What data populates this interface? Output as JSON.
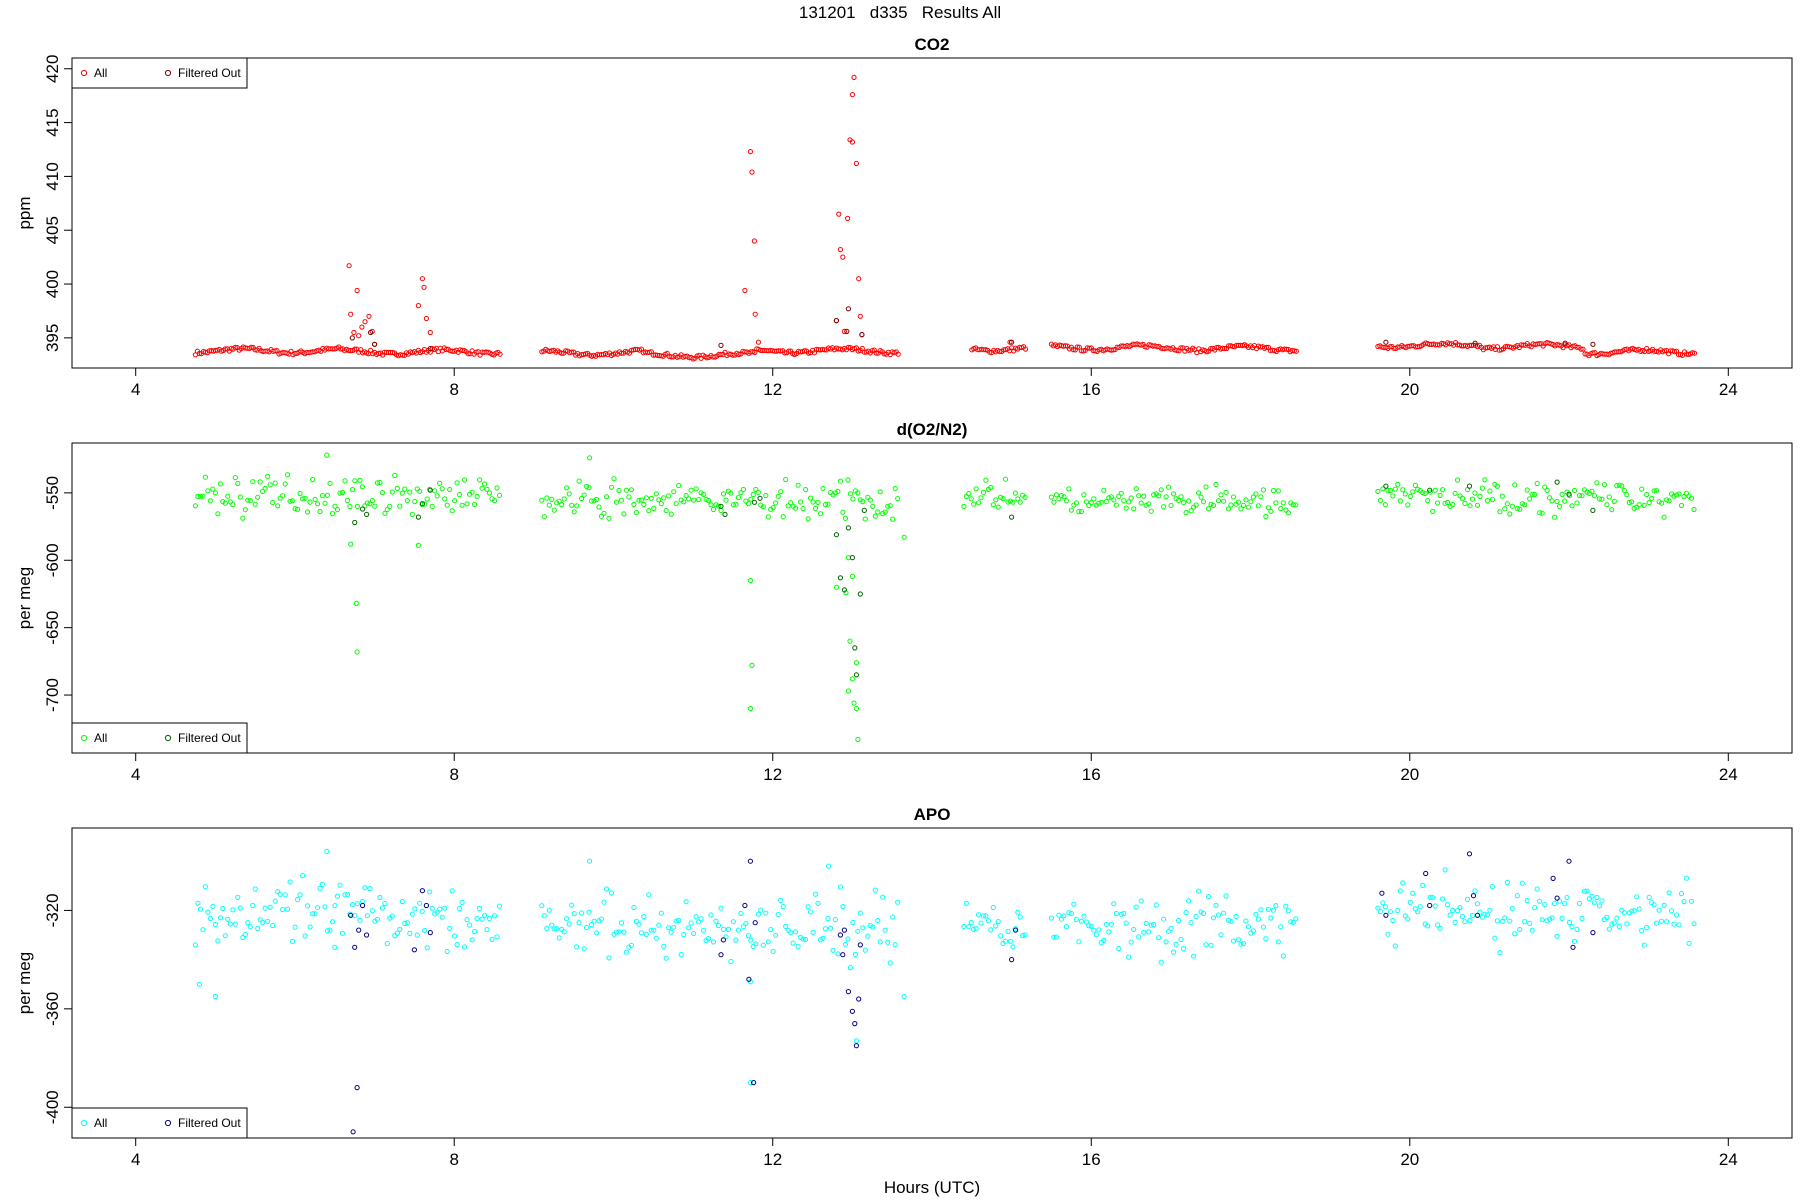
{
  "page": {
    "title": "131201   d335   Results All"
  },
  "colors": {
    "co2_all": "#ff0000",
    "co2_filtered": "#7a0000",
    "o2_all": "#00ff00",
    "o2_filtered": "#006400",
    "apo_all": "#00ffff",
    "apo_filtered": "#000080"
  },
  "chart_data": [
    {
      "type": "scatter",
      "title": "CO2",
      "xlabel": "",
      "ylabel": "ppm",
      "xlim": [
        3.2,
        24.8
      ],
      "ylim": [
        392.2,
        421
      ],
      "x_ticks": [
        "4",
        "8",
        "12",
        "16",
        "20",
        "24"
      ],
      "y_ticks": [
        "395",
        "400",
        "405",
        "410",
        "415",
        "420"
      ],
      "grid": false,
      "legend_position": "top-left",
      "legend": [
        "All",
        "Filtered Out"
      ],
      "series": [
        {
          "name": "All",
          "segments": [
            [
              4.75,
              6.6,
              393.8
            ],
            [
              6.6,
              8.6,
              393.7
            ],
            [
              9.1,
              10.4,
              393.6
            ],
            [
              10.4,
              11.8,
              393.4
            ],
            [
              11.8,
              13.6,
              393.8
            ],
            [
              14.5,
              15.2,
              394.0
            ],
            [
              15.5,
              17.3,
              394.1
            ],
            [
              17.3,
              18.6,
              394.0
            ],
            [
              19.6,
              20.9,
              394.3
            ],
            [
              20.9,
              22.2,
              394.2
            ],
            [
              22.2,
              23.6,
              393.7
            ]
          ],
          "points": [
            [
              6.68,
              401.7
            ],
            [
              6.7,
              397.2
            ],
            [
              6.74,
              395.5
            ],
            [
              6.78,
              399.4
            ],
            [
              6.8,
              395.2
            ],
            [
              6.84,
              396.0
            ],
            [
              6.88,
              396.5
            ],
            [
              6.93,
              397.0
            ],
            [
              6.97,
              395.6
            ],
            [
              7.0,
              394.4
            ],
            [
              7.55,
              398.0
            ],
            [
              7.6,
              400.5
            ],
            [
              7.62,
              399.7
            ],
            [
              7.65,
              396.8
            ],
            [
              7.7,
              395.5
            ],
            [
              11.65,
              399.4
            ],
            [
              11.72,
              412.3
            ],
            [
              11.74,
              410.4
            ],
            [
              11.77,
              404.0
            ],
            [
              11.78,
              397.2
            ],
            [
              11.82,
              394.6
            ],
            [
              12.8,
              396.6
            ],
            [
              12.83,
              406.5
            ],
            [
              12.85,
              403.2
            ],
            [
              12.88,
              402.5
            ],
            [
              12.9,
              395.6
            ],
            [
              12.94,
              406.1
            ],
            [
              12.97,
              413.4
            ],
            [
              13.0,
              417.6
            ],
            [
              13.02,
              419.2
            ],
            [
              13.0,
              413.2
            ],
            [
              13.05,
              411.2
            ],
            [
              13.08,
              400.5
            ],
            [
              13.1,
              397.0
            ],
            [
              13.12,
              395.3
            ],
            [
              14.98,
              394.6
            ]
          ]
        },
        {
          "name": "Filtered Out",
          "points": [
            [
              6.72,
              395.0
            ],
            [
              6.95,
              395.5
            ],
            [
              7.0,
              394.4
            ],
            [
              7.7,
              394.0
            ],
            [
              11.35,
              394.3
            ],
            [
              12.8,
              396.6
            ],
            [
              12.93,
              395.6
            ],
            [
              12.95,
              397.7
            ],
            [
              13.12,
              395.3
            ],
            [
              15.0,
              394.6
            ],
            [
              19.7,
              394.6
            ],
            [
              20.82,
              394.5
            ],
            [
              21.95,
              394.5
            ],
            [
              22.3,
              394.4
            ]
          ]
        }
      ]
    },
    {
      "type": "scatter",
      "title": "d(O2/N2)",
      "xlabel": "",
      "ylabel": "per meg",
      "xlim": [
        3.2,
        24.8
      ],
      "ylim": [
        -743,
        -513
      ],
      "x_ticks": [
        "4",
        "8",
        "12",
        "16",
        "20",
        "24"
      ],
      "y_ticks": [
        "-550",
        "-600",
        "-650",
        "-700"
      ],
      "grid": false,
      "legend_position": "bottom-left",
      "legend": [
        "All",
        "Filtered Out"
      ],
      "series": [
        {
          "name": "All",
          "segments": [
            [
              4.75,
              8.6,
              -552,
              10
            ],
            [
              9.1,
              13.6,
              -556,
              10
            ],
            [
              14.4,
              15.2,
              -552,
              7
            ],
            [
              15.5,
              18.6,
              -557,
              8
            ],
            [
              19.6,
              23.6,
              -553,
              9
            ]
          ],
          "points": [
            [
              6.7,
              -588
            ],
            [
              6.77,
              -632
            ],
            [
              6.78,
              -668
            ],
            [
              11.72,
              -615
            ],
            [
              11.74,
              -678
            ],
            [
              11.72,
              -710
            ],
            [
              7.55,
              -589
            ],
            [
              13.65,
              -583
            ],
            [
              12.97,
              -660
            ],
            [
              13.05,
              -676
            ],
            [
              13.05,
              -710
            ],
            [
              13.07,
              -733
            ],
            [
              13.02,
              -706
            ],
            [
              12.95,
              -697
            ],
            [
              12.8,
              -620
            ],
            [
              12.92,
              -624
            ],
            [
              12.95,
              -598
            ],
            [
              13.0,
              -612
            ],
            [
              13.0,
              -688
            ],
            [
              6.4,
              -522
            ],
            [
              9.7,
              -524
            ]
          ]
        },
        {
          "name": "Filtered Out",
          "points": [
            [
              6.75,
              -572
            ],
            [
              6.85,
              -562
            ],
            [
              6.9,
              -566
            ],
            [
              7.55,
              -568
            ],
            [
              7.6,
              -558
            ],
            [
              7.7,
              -548
            ],
            [
              11.35,
              -560
            ],
            [
              11.4,
              -566
            ],
            [
              11.77,
              -557
            ],
            [
              11.84,
              -554
            ],
            [
              12.8,
              -581
            ],
            [
              12.85,
              -613
            ],
            [
              12.9,
              -622
            ],
            [
              12.95,
              -576
            ],
            [
              13.0,
              -598
            ],
            [
              13.03,
              -665
            ],
            [
              13.05,
              -685
            ],
            [
              13.1,
              -625
            ],
            [
              13.15,
              -563
            ],
            [
              15.0,
              -568
            ],
            [
              19.7,
              -545
            ],
            [
              20.25,
              -548
            ],
            [
              20.75,
              -545
            ],
            [
              21.85,
              -542
            ],
            [
              22.0,
              -551
            ],
            [
              22.3,
              -563
            ]
          ]
        }
      ]
    },
    {
      "type": "scatter",
      "title": "APO",
      "xlabel": "Hours (UTC)",
      "ylabel": "per meg",
      "xlim": [
        3.2,
        24.8
      ],
      "ylim": [
        -412.5,
        -286.5
      ],
      "x_ticks": [
        "4",
        "8",
        "12",
        "16",
        "20",
        "24"
      ],
      "y_ticks": [
        "-320",
        "-360",
        "-400"
      ],
      "grid": false,
      "legend_position": "bottom-left",
      "legend": [
        "All",
        "Filtered Out"
      ],
      "series": [
        {
          "name": "All",
          "segments": [
            [
              4.75,
              8.6,
              -322,
              10
            ],
            [
              9.1,
              13.6,
              -327,
              10
            ],
            [
              14.4,
              15.2,
              -325,
              8
            ],
            [
              15.5,
              18.6,
              -326,
              9
            ],
            [
              19.6,
              23.6,
              -321,
              10
            ]
          ],
          "points": [
            [
              4.8,
              -350
            ],
            [
              5.0,
              -355
            ],
            [
              6.4,
              -296
            ],
            [
              6.5,
              -335
            ],
            [
              9.7,
              -300
            ],
            [
              12.7,
              -302
            ],
            [
              13.65,
              -355
            ],
            [
              11.72,
              -349
            ],
            [
              11.72,
              -390
            ],
            [
              13.05,
              -373
            ]
          ]
        },
        {
          "name": "Filtered Out",
          "points": [
            [
              6.7,
              -322
            ],
            [
              6.75,
              -335
            ],
            [
              6.8,
              -328
            ],
            [
              6.85,
              -318
            ],
            [
              6.9,
              -330
            ],
            [
              7.6,
              -312
            ],
            [
              7.65,
              -318
            ],
            [
              7.7,
              -329
            ],
            [
              7.5,
              -336
            ],
            [
              6.78,
              -392
            ],
            [
              6.73,
              -410
            ],
            [
              11.35,
              -338
            ],
            [
              11.38,
              -332
            ],
            [
              11.65,
              -318
            ],
            [
              11.7,
              -348
            ],
            [
              11.72,
              -300
            ],
            [
              11.78,
              -325
            ],
            [
              11.76,
              -390
            ],
            [
              12.85,
              -330
            ],
            [
              12.88,
              -338
            ],
            [
              12.9,
              -328
            ],
            [
              12.95,
              -353
            ],
            [
              13.0,
              -361
            ],
            [
              13.03,
              -366
            ],
            [
              13.05,
              -375
            ],
            [
              13.08,
              -356
            ],
            [
              13.1,
              -334
            ],
            [
              15.0,
              -340
            ],
            [
              15.05,
              -328
            ],
            [
              19.65,
              -313
            ],
            [
              19.7,
              -322
            ],
            [
              20.2,
              -305
            ],
            [
              20.25,
              -318
            ],
            [
              20.75,
              -297
            ],
            [
              20.8,
              -314
            ],
            [
              20.85,
              -322
            ],
            [
              21.8,
              -307
            ],
            [
              21.85,
              -315
            ],
            [
              22.0,
              -300
            ],
            [
              22.05,
              -335
            ],
            [
              22.3,
              -329
            ]
          ]
        }
      ]
    }
  ]
}
